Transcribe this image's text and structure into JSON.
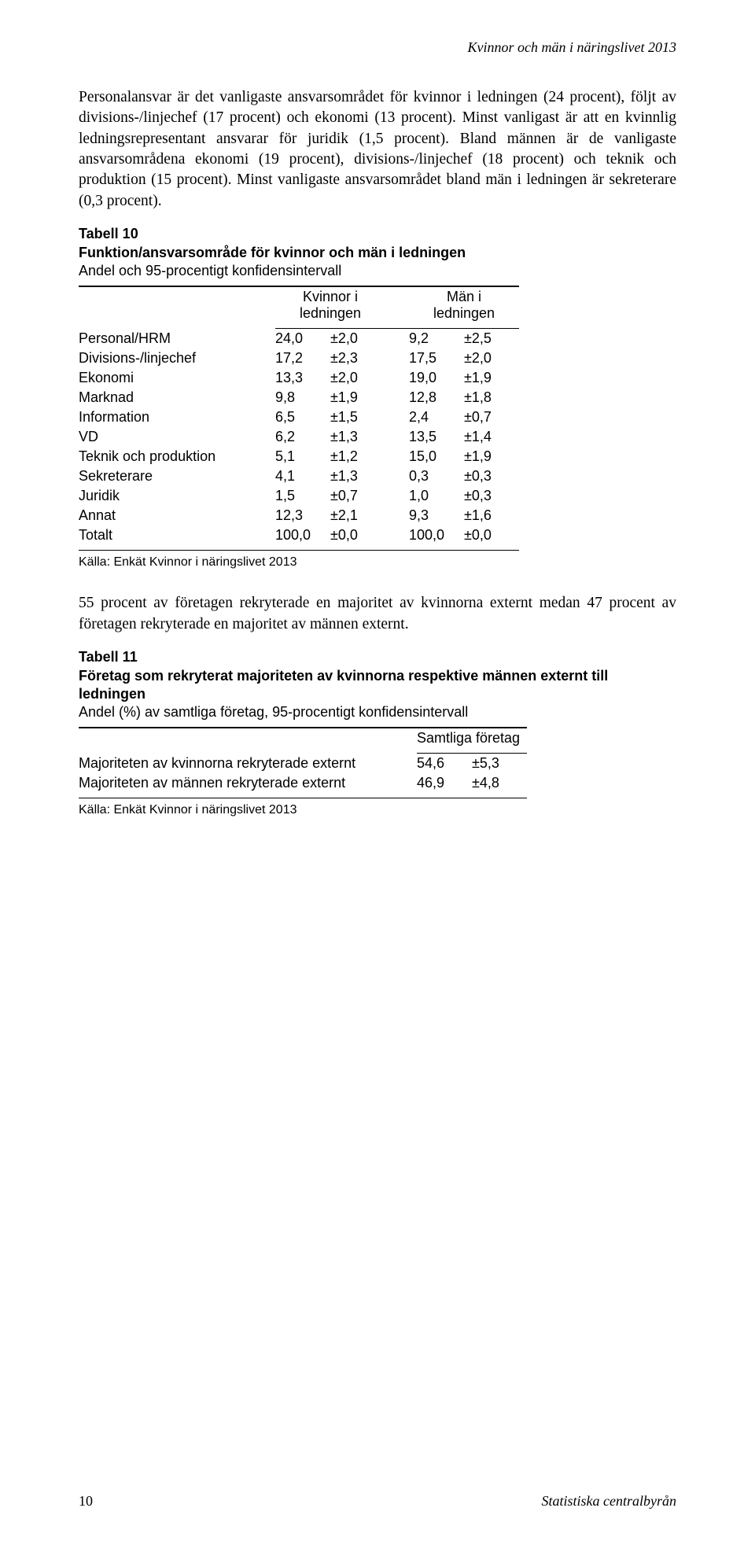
{
  "running_head": "Kvinnor och män i näringslivet 2013",
  "para1": "Personalansvar är det vanligaste ansvarsområdet för kvinnor i ledningen (24 procent), följt av divisions-/linjechef (17 procent) och ekonomi (13 procent). Minst vanligast är att en kvinnlig ledningsrepresentant ansvarar för juridik (1,5 procent). Bland männen är de vanligaste ansvarsområdena ekonomi (19 procent), divisions-/linjechef (18 procent) och teknik och produktion (15 procent). Minst vanligaste ansvarsområdet bland män i ledningen är sekreterare (0,3 procent).",
  "table10": {
    "label": "Tabell 10",
    "title": "Funktion/ansvarsområde för kvinnor och män i ledningen",
    "subtitle": "Andel och 95-procentigt konfidensintervall",
    "col_head_1a": "Kvinnor i",
    "col_head_1b": "ledningen",
    "col_head_2a": "Män i",
    "col_head_2b": "ledningen",
    "rows": [
      {
        "label": "Personal/HRM",
        "v1": "24,0",
        "ci1": "±2,0",
        "v2": "9,2",
        "ci2": "±2,5"
      },
      {
        "label": "Divisions-/linjechef",
        "v1": "17,2",
        "ci1": "±2,3",
        "v2": "17,5",
        "ci2": "±2,0"
      },
      {
        "label": "Ekonomi",
        "v1": "13,3",
        "ci1": "±2,0",
        "v2": "19,0",
        "ci2": "±1,9"
      },
      {
        "label": "Marknad",
        "v1": "9,8",
        "ci1": "±1,9",
        "v2": "12,8",
        "ci2": "±1,8"
      },
      {
        "label": "Information",
        "v1": "6,5",
        "ci1": "±1,5",
        "v2": "2,4",
        "ci2": "±0,7"
      },
      {
        "label": "VD",
        "v1": "6,2",
        "ci1": "±1,3",
        "v2": "13,5",
        "ci2": "±1,4"
      },
      {
        "label": "Teknik och produktion",
        "v1": "5,1",
        "ci1": "±1,2",
        "v2": "15,0",
        "ci2": "±1,9"
      },
      {
        "label": "Sekreterare",
        "v1": "4,1",
        "ci1": "±1,3",
        "v2": "0,3",
        "ci2": "±0,3"
      },
      {
        "label": "Juridik",
        "v1": "1,5",
        "ci1": "±0,7",
        "v2": "1,0",
        "ci2": "±0,3"
      },
      {
        "label": "Annat",
        "v1": "12,3",
        "ci1": "±2,1",
        "v2": "9,3",
        "ci2": "±1,6"
      },
      {
        "label": "Totalt",
        "v1": "100,0",
        "ci1": "±0,0",
        "v2": "100,0",
        "ci2": "±0,0"
      }
    ],
    "source": "Källa: Enkät Kvinnor i näringslivet 2013",
    "col_widths": {
      "label": 220,
      "gap1": 30,
      "v": 70,
      "ci": 70,
      "gap2": 30
    }
  },
  "para2": "55 procent av företagen rekryterade en majoritet av kvinnorna externt medan 47 procent av företagen rekryterade en majoritet av männen externt.",
  "table11": {
    "label": "Tabell 11",
    "title": "Företag som rekryterat majoriteten av kvinnorna respektive männen externt till ledningen",
    "subtitle": "Andel (%) av samtliga företag, 95-procentigt konfidensintervall",
    "col_head": "Samtliga företag",
    "rows": [
      {
        "label": "Majoriteten av kvinnorna rekryterade externt",
        "v": "54,6",
        "ci": "±5,3"
      },
      {
        "label": "Majoriteten av männen rekryterade externt",
        "v": "46,9",
        "ci": "±4,8"
      }
    ],
    "source": "Källa: Enkät Kvinnor i näringslivet 2013",
    "col_widths": {
      "label": 400,
      "gap": 30,
      "v": 70,
      "ci": 70
    }
  },
  "footer": {
    "page": "10",
    "publisher": "Statistiska centralbyrån"
  }
}
